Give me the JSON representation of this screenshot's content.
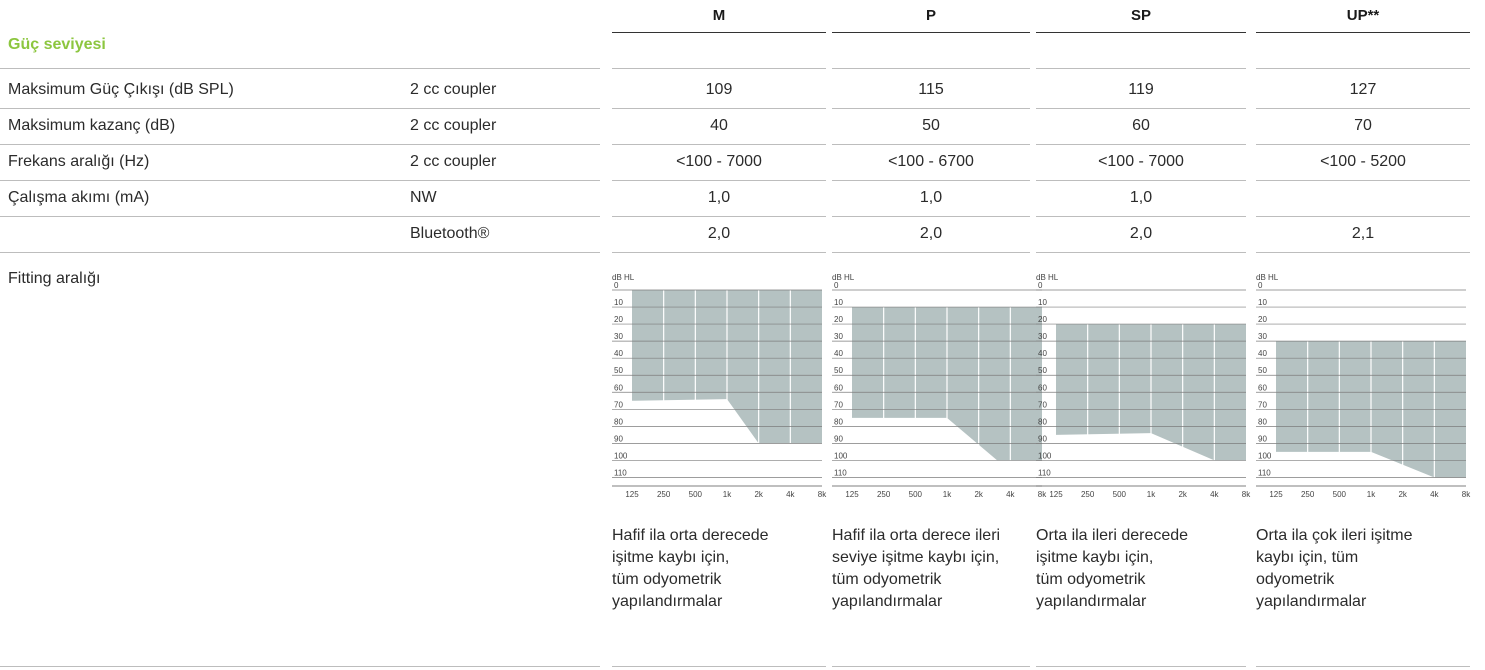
{
  "columns": [
    "M",
    "P",
    "SP",
    "UP**"
  ],
  "section": {
    "title": "Güç seviyesi",
    "accent": "#8cc63f"
  },
  "rows": [
    {
      "label": "Maksimum Güç Çıkışı (dB SPL)",
      "measurement": "2 cc coupler",
      "values": [
        "109",
        "115",
        "119",
        "127"
      ]
    },
    {
      "label": "Maksimum kazanç (dB)",
      "measurement": "2 cc coupler",
      "values": [
        "40",
        "50",
        "60",
        "70"
      ]
    },
    {
      "label": "Frekans aralığı (Hz)",
      "measurement": "2 cc coupler",
      "values": [
        "<100 - 7000",
        "<100 - 6700",
        "<100 - 7000",
        "<100 - 5200"
      ]
    },
    {
      "label": "Çalışma akımı (mA)",
      "measurement": "NW",
      "values": [
        "1,0",
        "1,0",
        "1,0",
        ""
      ]
    },
    {
      "label": "",
      "measurement": "Bluetooth®",
      "values": [
        "2,0",
        "2,0",
        "2,0",
        "2,1"
      ]
    }
  ],
  "fitting": {
    "label": "Fitting aralığı",
    "descriptions": [
      [
        "Hafif ila orta derecede",
        "işitme kaybı için,",
        "tüm odyometrik",
        "yapılandırmalar"
      ],
      [
        "Hafif ila orta derece ileri",
        "seviye işitme kaybı için,",
        "tüm odyometrik",
        "yapılandırmalar"
      ],
      [
        "Orta ila ileri derecede",
        "işitme kaybı için,",
        "tüm odyometrik",
        "yapılandırmalar"
      ],
      [
        "Orta ila çok ileri işitme",
        "kaybı için, tüm",
        "odyometrik",
        "yapılandırmalar"
      ]
    ]
  },
  "chart_data": [
    {
      "type": "area",
      "model": "M",
      "ylabel": "dB HL",
      "y_ticks": [
        "0",
        "10",
        "20",
        "30",
        "40",
        "50",
        "60",
        "70",
        "80",
        "90",
        "100",
        "110"
      ],
      "x_ticks": [
        "125",
        "250",
        "500",
        "1k",
        "2k",
        "4k",
        "8k"
      ],
      "ylim": [
        0,
        115
      ],
      "upper_limit_db": 0,
      "lower_boundary": {
        "x": [
          "125",
          "1k",
          "2k",
          "8k"
        ],
        "y": [
          65,
          64,
          90,
          90
        ]
      },
      "fill": "#b5c2c2"
    },
    {
      "type": "area",
      "model": "P",
      "ylabel": "dB HL",
      "y_ticks": [
        "0",
        "10",
        "20",
        "30",
        "40",
        "50",
        "60",
        "70",
        "80",
        "90",
        "100",
        "110"
      ],
      "x_ticks": [
        "125",
        "250",
        "500",
        "1k",
        "2k",
        "4k",
        "8k"
      ],
      "ylim": [
        0,
        115
      ],
      "upper_limit_db": 10,
      "lower_boundary": {
        "x": [
          "125",
          "1k",
          "3k",
          "8k"
        ],
        "y": [
          75,
          75,
          100,
          100
        ]
      },
      "fill": "#b5c2c2"
    },
    {
      "type": "area",
      "model": "SP",
      "ylabel": "dB HL",
      "y_ticks": [
        "0",
        "10",
        "20",
        "30",
        "40",
        "50",
        "60",
        "70",
        "80",
        "90",
        "100",
        "110"
      ],
      "x_ticks": [
        "125",
        "250",
        "500",
        "1k",
        "2k",
        "4k",
        "8k"
      ],
      "ylim": [
        0,
        115
      ],
      "upper_limit_db": 20,
      "lower_boundary": {
        "x": [
          "125",
          "1k",
          "4k",
          "8k"
        ],
        "y": [
          85,
          84,
          100,
          100
        ]
      },
      "fill": "#b5c2c2"
    },
    {
      "type": "area",
      "model": "UP**",
      "ylabel": "dB HL",
      "y_ticks": [
        "0",
        "10",
        "20",
        "30",
        "40",
        "50",
        "60",
        "70",
        "80",
        "90",
        "100",
        "110"
      ],
      "x_ticks": [
        "125",
        "250",
        "500",
        "1k",
        "2k",
        "4k",
        "8k"
      ],
      "ylim": [
        0,
        115
      ],
      "upper_limit_db": 30,
      "lower_boundary": {
        "x": [
          "125",
          "1k",
          "4k",
          "8k"
        ],
        "y": [
          95,
          95,
          110,
          110
        ]
      },
      "fill": "#b5c2c2"
    }
  ]
}
